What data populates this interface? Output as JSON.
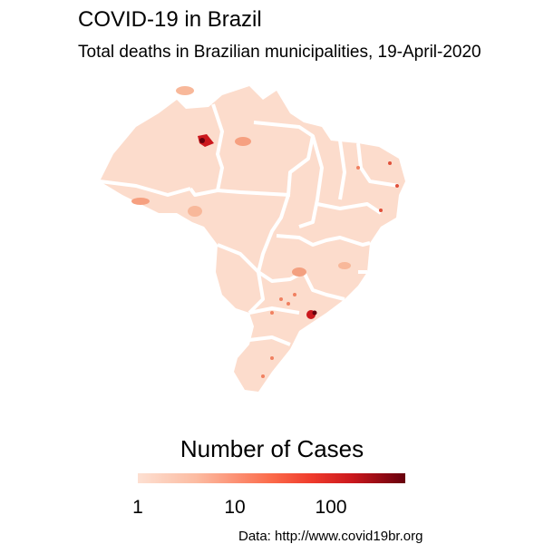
{
  "title": "COVID-19 in Brazil",
  "subtitle": "Total deaths in Brazilian municipalities, 19-April-2020",
  "legend": {
    "title": "Number of Cases",
    "ticks": [
      "1",
      "10",
      "100"
    ],
    "colors": [
      "#fde0d2",
      "#fcbba1",
      "#fb6a4a",
      "#ef3b2c",
      "#cb181d",
      "#67000d"
    ],
    "scale": "log"
  },
  "map": {
    "fill_base": "#fcdccc",
    "state_border_color": "#ffffff",
    "hotspot_color": "#cb181d"
  },
  "source": "Data: http://www.covid19br.org"
}
